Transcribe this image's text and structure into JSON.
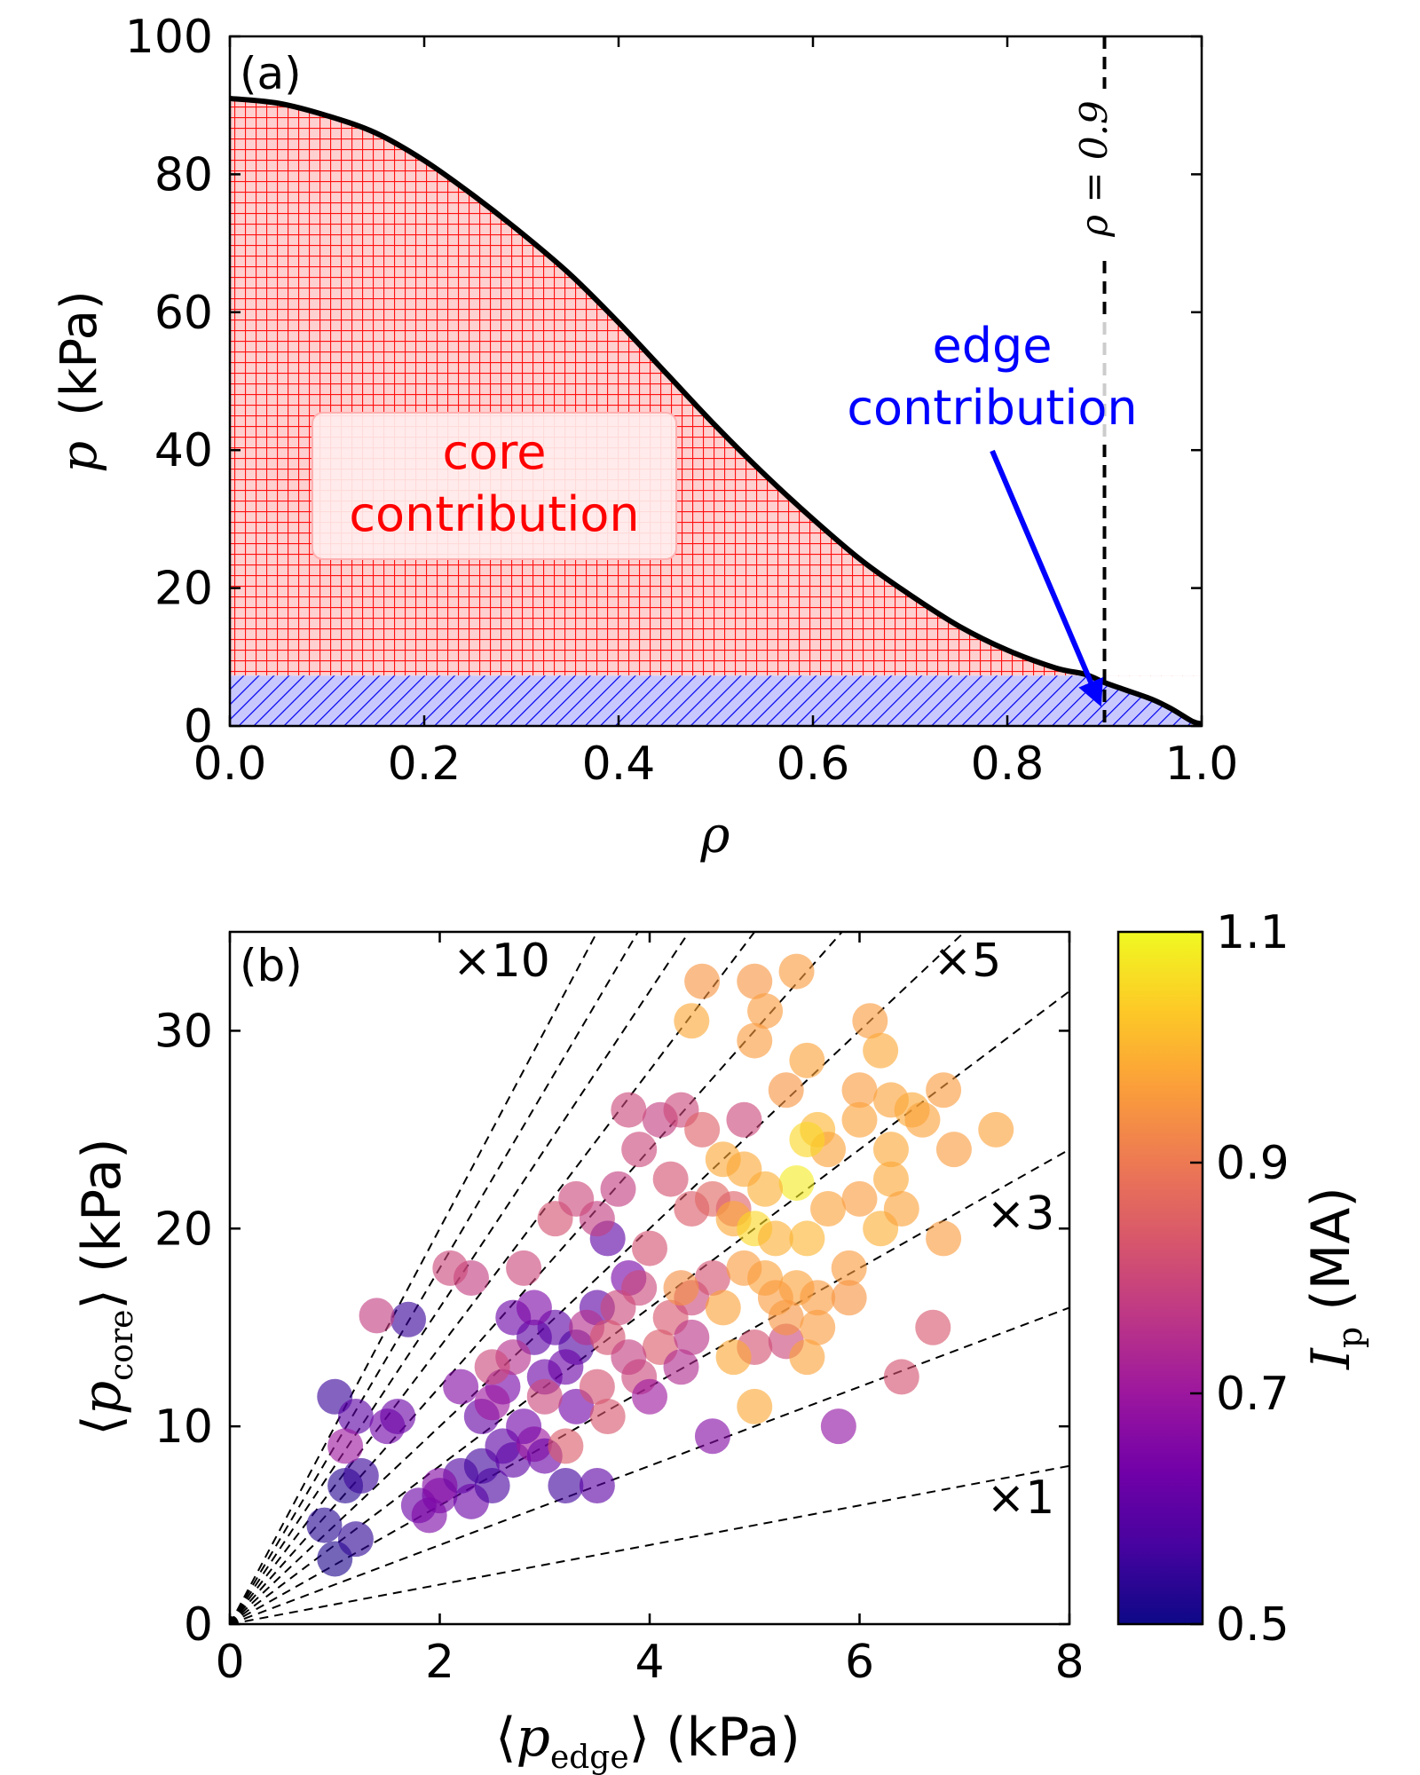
{
  "chart_data": [
    {
      "type": "area",
      "panel_label": "(a)",
      "xlabel": "ρ",
      "ylabel_symbol": "p",
      "ylabel_unit": "(kPa)",
      "xlim": [
        0,
        1
      ],
      "ylim": [
        0,
        100
      ],
      "xticks": [
        "0.0",
        "0.2",
        "0.4",
        "0.6",
        "0.8",
        "1.0"
      ],
      "yticks": [
        "0",
        "20",
        "40",
        "60",
        "80",
        "100"
      ],
      "profile": {
        "x": [
          0.0,
          0.05,
          0.1,
          0.15,
          0.2,
          0.25,
          0.3,
          0.35,
          0.4,
          0.45,
          0.5,
          0.55,
          0.6,
          0.65,
          0.7,
          0.75,
          0.8,
          0.85,
          0.88,
          0.9,
          0.92,
          0.95,
          0.97,
          0.99,
          1.0
        ],
        "y": [
          91,
          90.3,
          88.5,
          86,
          82,
          77,
          71.5,
          65.5,
          58.5,
          51,
          43.5,
          36.5,
          30,
          24,
          19,
          14.5,
          11,
          8.4,
          7.5,
          6.3,
          5.3,
          3.8,
          2.4,
          0.7,
          0.3
        ]
      },
      "edge_pressure": 7.3,
      "fill_colors": {
        "core": "#ff0000",
        "edge": "#0000ff"
      },
      "vline": {
        "x": 0.9,
        "label": "ρ = 0.9"
      },
      "annotations": {
        "core_line1": "core",
        "core_line2": "contribution",
        "edge_line1": "edge",
        "edge_line2": "contribution",
        "edge_arrow_target": [
          0.9,
          3.5
        ],
        "core_color": "#ff0000",
        "edge_color": "#0000ff"
      }
    },
    {
      "type": "scatter",
      "panel_label": "(b)",
      "xlabel_unit": "(kPa)",
      "ylabel_unit": "(kPa)",
      "xlabel_sub": "edge",
      "ylabel_sub": "core",
      "xlim": [
        0,
        8
      ],
      "ylim": [
        0,
        35
      ],
      "xticks": [
        "0",
        "2",
        "4",
        "6",
        "8"
      ],
      "yticks": [
        "0",
        "10",
        "20",
        "30"
      ],
      "reference_slopes": [
        1,
        2,
        3,
        4,
        5,
        6,
        7,
        8,
        9,
        10
      ],
      "slope_labels": [
        {
          "slope": 10,
          "text": "×10"
        },
        {
          "slope": 5,
          "text": "×5"
        },
        {
          "slope": 3,
          "text": "×3"
        },
        {
          "slope": 1,
          "text": "×1"
        }
      ],
      "colorbar": {
        "label_sym": "I",
        "label_sub": "p",
        "label_unit": "(MA)",
        "range": [
          0.5,
          1.1
        ],
        "ticks": [
          "0.5",
          "0.7",
          "0.9",
          "1.1"
        ],
        "colormap": "plasma",
        "stops": [
          "#0d0887",
          "#46039f",
          "#7201a8",
          "#9c179e",
          "#bd3786",
          "#d8576b",
          "#ed7953",
          "#fb9f3a",
          "#fdca26",
          "#f0f921"
        ]
      },
      "points": [
        [
          1.0,
          3.3,
          0.52
        ],
        [
          0.9,
          5.0,
          0.53
        ],
        [
          1.2,
          4.3,
          0.54
        ],
        [
          1.1,
          7.0,
          0.53
        ],
        [
          1.25,
          7.5,
          0.55
        ],
        [
          1.0,
          11.5,
          0.55
        ],
        [
          1.2,
          10.5,
          0.6
        ],
        [
          1.5,
          10.0,
          0.63
        ],
        [
          1.6,
          10.5,
          0.62
        ],
        [
          1.7,
          15.4,
          0.55
        ],
        [
          1.1,
          9.0,
          0.7
        ],
        [
          1.4,
          15.6,
          0.78
        ],
        [
          1.8,
          6.0,
          0.62
        ],
        [
          2.0,
          6.5,
          0.64
        ],
        [
          2.2,
          7.5,
          0.58
        ],
        [
          2.4,
          8.0,
          0.56
        ],
        [
          2.6,
          9.0,
          0.6
        ],
        [
          2.0,
          7.0,
          0.66
        ],
        [
          1.9,
          5.5,
          0.65
        ],
        [
          2.3,
          6.2,
          0.62
        ],
        [
          2.5,
          7.0,
          0.57
        ],
        [
          2.7,
          8.3,
          0.6
        ],
        [
          2.9,
          9.1,
          0.7
        ],
        [
          3.0,
          8.5,
          0.62
        ],
        [
          2.8,
          10.0,
          0.63
        ],
        [
          3.2,
          7.0,
          0.56
        ],
        [
          3.5,
          7.0,
          0.6
        ],
        [
          3.3,
          11.0,
          0.63
        ],
        [
          3.0,
          12.5,
          0.62
        ],
        [
          2.6,
          12.0,
          0.64
        ],
        [
          2.2,
          12.0,
          0.66
        ],
        [
          2.4,
          10.5,
          0.61
        ],
        [
          2.9,
          14.5,
          0.6
        ],
        [
          3.1,
          15.0,
          0.6
        ],
        [
          3.3,
          14.0,
          0.58
        ],
        [
          3.5,
          16.0,
          0.6
        ],
        [
          3.6,
          19.5,
          0.6
        ],
        [
          2.7,
          15.5,
          0.62
        ],
        [
          3.8,
          17.5,
          0.64
        ],
        [
          3.2,
          13.0,
          0.62
        ],
        [
          2.5,
          11.2,
          0.7
        ],
        [
          2.7,
          13.5,
          0.75
        ],
        [
          2.5,
          13.0,
          0.8
        ],
        [
          2.3,
          17.5,
          0.78
        ],
        [
          2.1,
          18.0,
          0.8
        ],
        [
          2.8,
          18.0,
          0.8
        ],
        [
          3.1,
          20.5,
          0.82
        ],
        [
          3.5,
          20.5,
          0.78
        ],
        [
          3.3,
          21.5,
          0.8
        ],
        [
          3.7,
          22.0,
          0.78
        ],
        [
          3.9,
          24.0,
          0.8
        ],
        [
          4.1,
          25.5,
          0.78
        ],
        [
          3.8,
          26.0,
          0.8
        ],
        [
          4.3,
          26.0,
          0.8
        ],
        [
          4.5,
          25.0,
          0.85
        ],
        [
          4.2,
          22.5,
          0.82
        ],
        [
          4.4,
          21.0,
          0.84
        ],
        [
          4.6,
          21.5,
          0.86
        ],
        [
          4.8,
          21.0,
          0.85
        ],
        [
          4.9,
          25.5,
          0.8
        ],
        [
          4.0,
          19.0,
          0.82
        ],
        [
          3.9,
          17.0,
          0.8
        ],
        [
          3.7,
          16.0,
          0.8
        ],
        [
          3.4,
          15.0,
          0.75
        ],
        [
          3.6,
          14.5,
          0.82
        ],
        [
          4.1,
          14.0,
          0.84
        ],
        [
          4.2,
          15.5,
          0.83
        ],
        [
          4.4,
          16.5,
          0.8
        ],
        [
          4.6,
          17.5,
          0.82
        ],
        [
          3.9,
          12.5,
          0.8
        ],
        [
          3.5,
          12.0,
          0.82
        ],
        [
          3.2,
          9.0,
          0.84
        ],
        [
          3.6,
          10.5,
          0.83
        ],
        [
          3.0,
          11.5,
          0.8
        ],
        [
          3.8,
          13.5,
          0.78
        ],
        [
          4.3,
          13.0,
          0.74
        ],
        [
          4.0,
          11.5,
          0.7
        ],
        [
          4.6,
          9.5,
          0.66
        ],
        [
          5.0,
          14.0,
          0.82
        ],
        [
          5.3,
          14.3,
          0.8
        ],
        [
          5.8,
          10.0,
          0.68
        ],
        [
          6.4,
          12.5,
          0.82
        ],
        [
          6.7,
          15.0,
          0.83
        ],
        [
          4.4,
          14.5,
          0.76
        ],
        [
          2.9,
          16.0,
          0.65
        ],
        [
          4.5,
          32.5,
          0.95
        ],
        [
          5.0,
          32.5,
          0.95
        ],
        [
          5.4,
          33.0,
          0.96
        ],
        [
          4.4,
          30.5,
          0.98
        ],
        [
          5.1,
          31.0,
          0.96
        ],
        [
          5.0,
          29.5,
          0.96
        ],
        [
          5.5,
          28.5,
          0.97
        ],
        [
          5.3,
          27.0,
          0.95
        ],
        [
          5.6,
          25.0,
          1.0
        ],
        [
          6.1,
          30.5,
          0.96
        ],
        [
          6.2,
          29.0,
          0.98
        ],
        [
          6.0,
          27.0,
          0.96
        ],
        [
          6.3,
          26.5,
          0.97
        ],
        [
          6.5,
          26.0,
          0.98
        ],
        [
          6.8,
          27.0,
          0.96
        ],
        [
          7.3,
          25.0,
          0.97
        ],
        [
          6.9,
          24.0,
          0.96
        ],
        [
          6.6,
          25.5,
          0.97
        ],
        [
          6.3,
          24.0,
          0.98
        ],
        [
          6.0,
          25.5,
          0.97
        ],
        [
          5.7,
          24.0,
          0.97
        ],
        [
          5.5,
          24.5,
          1.05
        ],
        [
          5.4,
          22.3,
          1.08
        ],
        [
          5.1,
          22.0,
          0.99
        ],
        [
          4.9,
          23.0,
          0.98
        ],
        [
          4.7,
          23.5,
          0.98
        ],
        [
          4.8,
          20.5,
          0.98
        ],
        [
          5.0,
          20.0,
          1.05
        ],
        [
          5.2,
          19.5,
          0.99
        ],
        [
          5.5,
          19.5,
          1.0
        ],
        [
          5.7,
          21.0,
          0.97
        ],
        [
          6.0,
          21.5,
          0.96
        ],
        [
          6.3,
          22.5,
          0.98
        ],
        [
          6.2,
          20.0,
          0.99
        ],
        [
          6.4,
          21.0,
          0.97
        ],
        [
          6.8,
          19.5,
          0.96
        ],
        [
          5.9,
          18.0,
          0.96
        ],
        [
          5.4,
          17.0,
          0.97
        ],
        [
          5.6,
          16.5,
          0.96
        ],
        [
          5.1,
          17.5,
          0.97
        ],
        [
          4.9,
          18.0,
          0.96
        ],
        [
          4.7,
          16.0,
          0.97
        ],
        [
          5.3,
          15.5,
          0.95
        ],
        [
          5.6,
          15.0,
          0.96
        ],
        [
          5.9,
          16.5,
          0.95
        ],
        [
          4.8,
          13.5,
          0.98
        ],
        [
          5.5,
          13.5,
          0.97
        ],
        [
          5.0,
          11.0,
          0.98
        ],
        [
          4.3,
          17.0,
          0.94
        ],
        [
          5.2,
          16.5,
          0.96
        ]
      ]
    }
  ]
}
